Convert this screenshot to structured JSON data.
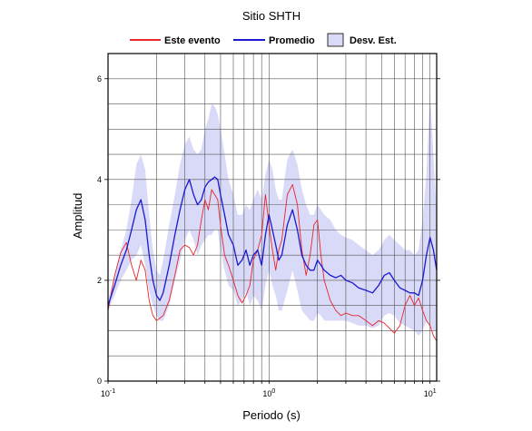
{
  "chart_data": {
    "type": "line",
    "title": "Sitio SHTH",
    "xlabel": "Periodo (s)",
    "ylabel": "Amplitud",
    "x_scale": "log",
    "xlim": [
      0.1,
      11
    ],
    "ylim": [
      0,
      6.5
    ],
    "x_ticks": [
      {
        "value": 0.1,
        "base": "10",
        "exp": "-1"
      },
      {
        "value": 1,
        "base": "10",
        "exp": "0"
      },
      {
        "value": 10,
        "base": "10",
        "exp": "1"
      }
    ],
    "y_ticks": [
      0,
      2,
      4,
      6
    ],
    "grid": true,
    "legend_position": "top",
    "legend": {
      "evento": "Este evento",
      "promedio": "Promedio",
      "desv": "Desv. Est."
    },
    "colors": {
      "evento": "#e8262b",
      "promedio": "#1a1ad0",
      "band": "#d9d9f8"
    },
    "series": [
      {
        "name": "Promedio",
        "x": [
          0.1,
          0.11,
          0.12,
          0.13,
          0.14,
          0.15,
          0.16,
          0.17,
          0.18,
          0.19,
          0.2,
          0.21,
          0.22,
          0.24,
          0.26,
          0.28,
          0.3,
          0.32,
          0.34,
          0.36,
          0.38,
          0.4,
          0.42,
          0.44,
          0.46,
          0.48,
          0.5,
          0.53,
          0.56,
          0.6,
          0.64,
          0.68,
          0.72,
          0.76,
          0.8,
          0.85,
          0.9,
          0.95,
          1.0,
          1.05,
          1.1,
          1.15,
          1.2,
          1.3,
          1.4,
          1.5,
          1.6,
          1.7,
          1.8,
          1.9,
          2.0,
          2.1,
          2.2,
          2.4,
          2.6,
          2.8,
          3.0,
          3.3,
          3.6,
          4.0,
          4.4,
          4.8,
          5.2,
          5.6,
          6.0,
          6.5,
          7.0,
          7.5,
          8.0,
          8.5,
          9.0,
          9.5,
          10.0,
          10.5,
          11.0
        ],
        "y": [
          1.5,
          1.9,
          2.3,
          2.6,
          3.0,
          3.4,
          3.6,
          3.2,
          2.5,
          2.0,
          1.7,
          1.6,
          1.75,
          2.3,
          2.9,
          3.4,
          3.8,
          4.0,
          3.7,
          3.5,
          3.6,
          3.85,
          3.95,
          4.0,
          4.05,
          4.0,
          3.7,
          3.3,
          2.9,
          2.7,
          2.3,
          2.4,
          2.6,
          2.3,
          2.5,
          2.6,
          2.3,
          2.9,
          3.3,
          3.0,
          2.7,
          2.4,
          2.5,
          3.1,
          3.4,
          3.0,
          2.5,
          2.3,
          2.2,
          2.2,
          2.4,
          2.3,
          2.2,
          2.1,
          2.05,
          2.1,
          2.0,
          1.95,
          1.85,
          1.8,
          1.75,
          1.9,
          2.1,
          2.15,
          2.0,
          1.85,
          1.8,
          1.75,
          1.75,
          1.7,
          2.0,
          2.5,
          2.85,
          2.6,
          2.2
        ]
      },
      {
        "name": "Este evento",
        "x": [
          0.1,
          0.11,
          0.12,
          0.13,
          0.14,
          0.15,
          0.16,
          0.17,
          0.18,
          0.19,
          0.2,
          0.21,
          0.22,
          0.24,
          0.26,
          0.28,
          0.3,
          0.32,
          0.34,
          0.36,
          0.38,
          0.4,
          0.42,
          0.44,
          0.46,
          0.48,
          0.5,
          0.53,
          0.56,
          0.6,
          0.64,
          0.68,
          0.72,
          0.76,
          0.8,
          0.85,
          0.9,
          0.95,
          1.0,
          1.05,
          1.1,
          1.15,
          1.2,
          1.3,
          1.4,
          1.5,
          1.6,
          1.7,
          1.8,
          1.9,
          2.0,
          2.1,
          2.2,
          2.4,
          2.6,
          2.8,
          3.0,
          3.3,
          3.6,
          4.0,
          4.4,
          4.8,
          5.2,
          5.6,
          6.0,
          6.5,
          7.0,
          7.5,
          8.0,
          8.5,
          9.0,
          9.5,
          10.0,
          10.5,
          11.0
        ],
        "y": [
          1.4,
          2.1,
          2.55,
          2.75,
          2.3,
          2.0,
          2.4,
          2.2,
          1.6,
          1.3,
          1.2,
          1.25,
          1.3,
          1.6,
          2.1,
          2.6,
          2.7,
          2.65,
          2.5,
          2.7,
          3.2,
          3.6,
          3.4,
          3.8,
          3.7,
          3.6,
          3.1,
          2.5,
          2.3,
          2.0,
          1.7,
          1.55,
          1.7,
          1.9,
          2.4,
          2.6,
          2.9,
          3.7,
          3.1,
          2.6,
          2.2,
          2.6,
          2.8,
          3.7,
          3.9,
          3.5,
          2.6,
          2.1,
          2.5,
          3.1,
          3.2,
          2.5,
          2.0,
          1.6,
          1.4,
          1.3,
          1.35,
          1.3,
          1.3,
          1.2,
          1.1,
          1.2,
          1.15,
          1.05,
          0.95,
          1.1,
          1.5,
          1.7,
          1.5,
          1.65,
          1.4,
          1.2,
          1.1,
          0.9,
          0.8
        ]
      }
    ],
    "band": {
      "name": "Desv. Est.",
      "x": [
        0.1,
        0.11,
        0.12,
        0.13,
        0.14,
        0.15,
        0.16,
        0.17,
        0.18,
        0.19,
        0.2,
        0.21,
        0.22,
        0.24,
        0.26,
        0.28,
        0.3,
        0.32,
        0.34,
        0.36,
        0.38,
        0.4,
        0.42,
        0.44,
        0.46,
        0.48,
        0.5,
        0.53,
        0.56,
        0.6,
        0.64,
        0.68,
        0.72,
        0.76,
        0.8,
        0.85,
        0.9,
        0.95,
        1.0,
        1.05,
        1.1,
        1.15,
        1.2,
        1.3,
        1.4,
        1.5,
        1.6,
        1.7,
        1.8,
        1.9,
        2.0,
        2.1,
        2.2,
        2.4,
        2.6,
        2.8,
        3.0,
        3.3,
        3.6,
        4.0,
        4.4,
        4.8,
        5.2,
        5.6,
        6.0,
        6.5,
        7.0,
        7.5,
        8.0,
        8.5,
        9.0,
        9.5,
        10.0,
        10.5,
        11.0
      ],
      "upper": [
        1.6,
        2.1,
        2.6,
        3.0,
        3.6,
        4.3,
        4.5,
        4.2,
        3.3,
        2.6,
        2.2,
        2.1,
        2.4,
        3.1,
        3.7,
        4.3,
        4.7,
        4.85,
        4.6,
        4.5,
        4.6,
        5.0,
        5.2,
        5.5,
        5.45,
        5.3,
        5.0,
        4.5,
        4.0,
        3.7,
        3.3,
        3.3,
        3.5,
        3.4,
        3.6,
        3.8,
        3.6,
        4.1,
        4.4,
        4.2,
        3.8,
        3.6,
        3.6,
        4.4,
        4.6,
        4.3,
        3.8,
        3.5,
        3.3,
        3.3,
        3.5,
        3.4,
        3.3,
        3.2,
        3.0,
        2.9,
        2.85,
        2.8,
        2.7,
        2.6,
        2.5,
        2.6,
        2.8,
        2.9,
        2.8,
        2.7,
        2.6,
        2.6,
        2.5,
        2.6,
        3.2,
        4.1,
        5.7,
        4.5,
        3.3
      ],
      "lower": [
        1.4,
        1.7,
        2.0,
        2.2,
        2.4,
        2.5,
        2.7,
        2.3,
        1.8,
        1.5,
        1.3,
        1.2,
        1.2,
        1.5,
        2.0,
        2.4,
        2.8,
        3.0,
        2.8,
        2.5,
        2.7,
        2.8,
        2.9,
        2.9,
        3.0,
        3.0,
        2.6,
        2.2,
        1.9,
        1.8,
        1.5,
        1.6,
        1.8,
        1.5,
        1.7,
        1.6,
        1.4,
        1.9,
        2.2,
        1.9,
        1.7,
        1.4,
        1.4,
        1.8,
        2.2,
        1.8,
        1.4,
        1.3,
        1.2,
        1.2,
        1.35,
        1.3,
        1.2,
        1.2,
        1.2,
        1.2,
        1.2,
        1.15,
        1.1,
        1.1,
        1.05,
        1.1,
        1.3,
        1.35,
        1.3,
        1.15,
        1.1,
        1.05,
        1.0,
        0.9,
        1.0,
        1.2,
        1.1,
        1.0,
        1.0
      ]
    }
  }
}
